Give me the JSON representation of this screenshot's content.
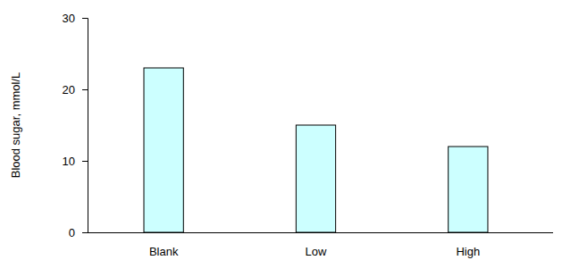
{
  "chart_data": {
    "type": "bar",
    "y_label": "Blood sugar, mmol/L",
    "categories": [
      "Blank",
      "Low",
      "High"
    ],
    "values": [
      23,
      15,
      12
    ],
    "color": "#ccffff",
    "ylim": [
      0,
      30
    ],
    "yticks": [
      0,
      10,
      20,
      30
    ],
    "grid": false
  }
}
